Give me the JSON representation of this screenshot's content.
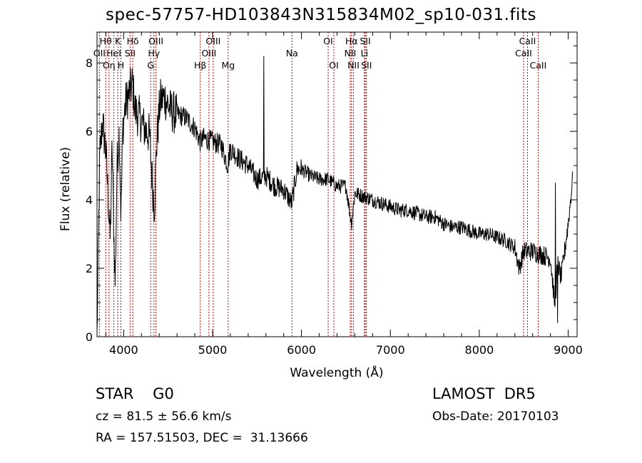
{
  "chart_data": {
    "type": "line",
    "title": "spec-57757-HD103843N315834M02_sp10-031.fits",
    "xlabel": "Wavelength (Å)",
    "ylabel": "Flux (relative)",
    "xlim": [
      3700,
      9100
    ],
    "ylim": [
      0,
      8.9
    ],
    "x_ticks": [
      4000,
      5000,
      6000,
      7000,
      8000,
      9000
    ],
    "y_ticks": [
      0,
      2,
      4,
      6,
      8
    ],
    "grid": false,
    "series_color": "#000000",
    "line_marker_color": "#cc0000",
    "spectrum_anchors": [
      [
        3700,
        0.0
      ],
      [
        3715,
        2.6
      ],
      [
        3730,
        5.2
      ],
      [
        3760,
        6.3
      ],
      [
        3800,
        5.4
      ],
      [
        3830,
        3.8
      ],
      [
        3850,
        2.8
      ],
      [
        3870,
        5.6
      ],
      [
        3890,
        3.0
      ],
      [
        3905,
        1.5
      ],
      [
        3925,
        5.0
      ],
      [
        3950,
        6.0
      ],
      [
        3970,
        3.5
      ],
      [
        3990,
        6.1
      ],
      [
        4020,
        6.8
      ],
      [
        4060,
        7.1
      ],
      [
        4100,
        7.4
      ],
      [
        4130,
        6.6
      ],
      [
        4180,
        6.4
      ],
      [
        4230,
        6.1
      ],
      [
        4290,
        5.9
      ],
      [
        4330,
        4.2
      ],
      [
        4345,
        3.8
      ],
      [
        4370,
        5.6
      ],
      [
        4410,
        6.9
      ],
      [
        4460,
        7.0
      ],
      [
        4530,
        6.6
      ],
      [
        4600,
        6.5
      ],
      [
        4700,
        6.4
      ],
      [
        4800,
        6.1
      ],
      [
        4860,
        5.7
      ],
      [
        4900,
        5.8
      ],
      [
        5000,
        5.7
      ],
      [
        5100,
        5.6
      ],
      [
        5170,
        5.0
      ],
      [
        5200,
        5.5
      ],
      [
        5300,
        5.2
      ],
      [
        5400,
        5.0
      ],
      [
        5500,
        4.6
      ],
      [
        5600,
        4.7
      ],
      [
        5700,
        4.4
      ],
      [
        5800,
        4.3
      ],
      [
        5890,
        3.9
      ],
      [
        5950,
        4.9
      ],
      [
        6000,
        4.9
      ],
      [
        6100,
        4.7
      ],
      [
        6200,
        4.6
      ],
      [
        6300,
        4.6
      ],
      [
        6400,
        4.4
      ],
      [
        6500,
        4.4
      ],
      [
        6563,
        3.3
      ],
      [
        6600,
        4.2
      ],
      [
        6700,
        4.1
      ],
      [
        6800,
        4.0
      ],
      [
        6900,
        3.9
      ],
      [
        7000,
        3.8
      ],
      [
        7100,
        3.7
      ],
      [
        7200,
        3.7
      ],
      [
        7300,
        3.6
      ],
      [
        7400,
        3.5
      ],
      [
        7500,
        3.5
      ],
      [
        7600,
        3.3
      ],
      [
        7700,
        3.2
      ],
      [
        7800,
        3.2
      ],
      [
        7900,
        3.1
      ],
      [
        8000,
        3.0
      ],
      [
        8100,
        3.0
      ],
      [
        8200,
        2.9
      ],
      [
        8300,
        2.8
      ],
      [
        8400,
        2.6
      ],
      [
        8450,
        2.0
      ],
      [
        8500,
        2.5
      ],
      [
        8600,
        2.5
      ],
      [
        8700,
        2.4
      ],
      [
        8800,
        2.3
      ],
      [
        8850,
        0.9
      ],
      [
        8880,
        2.2
      ],
      [
        8920,
        1.7
      ],
      [
        8960,
        2.5
      ],
      [
        9000,
        3.3
      ],
      [
        9050,
        4.6
      ]
    ],
    "spectrum_spikes": [
      [
        5575,
        8.2
      ],
      [
        8855,
        4.5
      ],
      [
        9060,
        4.9
      ],
      [
        8880,
        0.4
      ]
    ],
    "lines": [
      {
        "label": "Hθ",
        "wavelength": 3798,
        "row": 1
      },
      {
        "label": "K",
        "wavelength": 3934,
        "row": 1
      },
      {
        "label": "Hδ",
        "wavelength": 4102,
        "row": 1
      },
      {
        "label": "OII",
        "wavelength": 3727,
        "row": 2
      },
      {
        "label": "HeI",
        "wavelength": 3889,
        "row": 2
      },
      {
        "label": "SII",
        "wavelength": 4072,
        "row": 2
      },
      {
        "label": "OIII",
        "wavelength": 4363,
        "row": 1
      },
      {
        "label": "Hγ",
        "wavelength": 4340,
        "row": 2
      },
      {
        "label": "G",
        "wavelength": 4304,
        "row": 3
      },
      {
        "label": "OIII",
        "wavelength": 5007,
        "row": 1
      },
      {
        "label": "OIII",
        "wavelength": 4959,
        "row": 2
      },
      {
        "label": "Hβ",
        "wavelength": 4861,
        "row": 3
      },
      {
        "label": "Mg",
        "wavelength": 5175,
        "row": 3
      },
      {
        "label": "Na",
        "wavelength": 5893,
        "row": 2
      },
      {
        "label": "OI",
        "wavelength": 6300,
        "row": 1
      },
      {
        "label": "OI",
        "wavelength": 6364,
        "row": 3
      },
      {
        "label": "Hα",
        "wavelength": 6563,
        "row": 1
      },
      {
        "label": "SII",
        "wavelength": 6717,
        "row": 1
      },
      {
        "label": "NII",
        "wavelength": 6548,
        "row": 2
      },
      {
        "label": "Li",
        "wavelength": 6708,
        "row": 2
      },
      {
        "label": "NII",
        "wavelength": 6584,
        "row": 3
      },
      {
        "label": "SII",
        "wavelength": 6731,
        "row": 3
      },
      {
        "label": "CaII",
        "wavelength": 8542,
        "row": 1
      },
      {
        "label": "CaII",
        "wavelength": 8498,
        "row": 2
      },
      {
        "label": "CaII",
        "wavelength": 8662,
        "row": 3
      },
      {
        "label": "Oη",
        "wavelength": 3835,
        "row": 3
      },
      {
        "label": "H",
        "wavelength": 3968,
        "row": 3
      }
    ]
  },
  "info": {
    "class_text": "STAR    G0",
    "survey_text": "LAMOST  DR5",
    "cz_text": "cz = 81.5 ± 56.6 km/s",
    "obs_text": "Obs-Date: 20170103",
    "radec_text": "RA = 157.51503, DEC =  31.13666"
  }
}
